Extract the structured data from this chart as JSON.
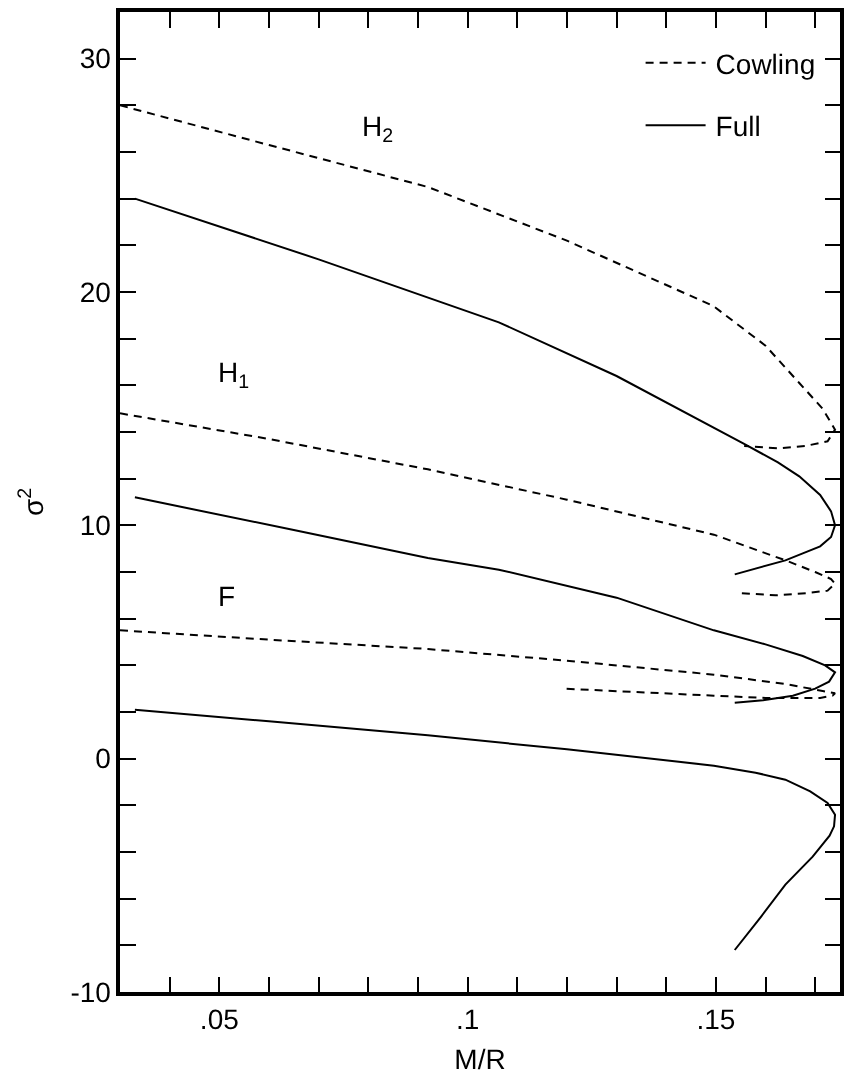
{
  "chart_data": {
    "type": "line",
    "xlabel": "M/R",
    "ylabel": "σ$^{2}$",
    "xlim": [
      0.03,
      0.175
    ],
    "ylim": [
      -10,
      32
    ],
    "xticks": [
      {
        "value": 0.04,
        "label": null
      },
      {
        "value": 0.05,
        "label": ".05"
      },
      {
        "value": 0.06,
        "label": null
      },
      {
        "value": 0.07,
        "label": null
      },
      {
        "value": 0.08,
        "label": null
      },
      {
        "value": 0.09,
        "label": null
      },
      {
        "value": 0.1,
        "label": ".1"
      },
      {
        "value": 0.11,
        "label": null
      },
      {
        "value": 0.12,
        "label": null
      },
      {
        "value": 0.13,
        "label": null
      },
      {
        "value": 0.14,
        "label": null
      },
      {
        "value": 0.15,
        "label": ".15"
      },
      {
        "value": 0.16,
        "label": null
      },
      {
        "value": 0.17,
        "label": null
      }
    ],
    "yticks": [
      -10,
      {
        "value": -8,
        "label": null
      },
      {
        "value": -6,
        "label": null
      },
      {
        "value": -4,
        "label": null
      },
      {
        "value": -2,
        "label": null
      },
      0,
      {
        "value": 2,
        "label": null
      },
      {
        "value": 4,
        "label": null
      },
      {
        "value": 6,
        "label": null
      },
      {
        "value": 8,
        "label": null
      },
      10,
      {
        "value": 12,
        "label": null
      },
      {
        "value": 14,
        "label": null
      },
      {
        "value": 16,
        "label": null
      },
      {
        "value": 18,
        "label": null
      },
      20,
      {
        "value": 22,
        "label": null
      },
      {
        "value": 24,
        "label": null
      },
      {
        "value": 26,
        "label": null
      },
      {
        "value": 28,
        "label": null
      },
      30
    ],
    "grid": false,
    "legend": "top right",
    "marker": "none",
    "series": [
      {
        "name": "Cowling",
        "color": "#000000",
        "line_style": "dashed",
        "x": [
          0.03,
          0.06,
          0.092,
          0.12,
          0.1495,
          0.16,
          0.1668,
          0.1715,
          0.174,
          0.1725,
          0.168,
          0.1625,
          0.1557
        ],
        "values": [
          28.0,
          26.3,
          24.5,
          22.2,
          19.4,
          17.7,
          16.1,
          15.0,
          14.1,
          13.6,
          13.4,
          13.3,
          13.4
        ]
      },
      {
        "name": "Full",
        "color": "#000000",
        "line_style": "solid",
        "x": [
          0.033,
          0.07,
          0.1063,
          0.13,
          0.1556,
          0.1625,
          0.1668,
          0.171,
          0.1732,
          0.174,
          0.1732,
          0.171,
          0.1675,
          0.164,
          0.1538
        ],
        "values": [
          24.0,
          21.4,
          18.7,
          16.4,
          13.5,
          12.7,
          12.1,
          11.3,
          10.6,
          10.0,
          9.5,
          9.1,
          8.8,
          8.5,
          7.9
        ]
      },
      {
        "color": "#000000",
        "line_style": "dashed",
        "x": [
          0.03,
          0.06,
          0.092,
          0.12,
          0.1496,
          0.164,
          0.17,
          0.1732,
          0.174,
          0.1725,
          0.1685,
          0.162,
          0.1545
        ],
        "values": [
          14.8,
          13.7,
          12.4,
          11.1,
          9.6,
          8.5,
          8.0,
          7.7,
          7.5,
          7.2,
          7.1,
          7.0,
          7.1
        ]
      },
      {
        "color": "#000000",
        "line_style": "solid",
        "x": [
          0.033,
          0.065,
          0.092,
          0.1063,
          0.13,
          0.1496,
          0.16,
          0.1675,
          0.172,
          0.174,
          0.1728,
          0.17,
          0.1655,
          0.1595,
          0.1538
        ],
        "values": [
          11.2,
          9.8,
          8.6,
          8.1,
          6.9,
          5.5,
          4.9,
          4.4,
          4.0,
          3.7,
          3.3,
          3.0,
          2.7,
          2.5,
          2.4
        ]
      },
      {
        "color": "#000000",
        "line_style": "dashed",
        "x": [
          0.03,
          0.06,
          0.092,
          0.12,
          0.1496,
          0.164,
          0.1715,
          0.174,
          0.1735,
          0.171,
          0.16,
          0.1496,
          0.1193
        ],
        "values": [
          5.5,
          5.1,
          4.7,
          4.2,
          3.6,
          3.2,
          2.9,
          2.8,
          2.7,
          2.6,
          2.6,
          2.7,
          3.0
        ]
      },
      {
        "color": "#000000",
        "line_style": "solid",
        "x": [
          0.033,
          0.06,
          0.092,
          0.12,
          0.1496,
          0.158,
          0.164,
          0.169,
          0.1725,
          0.174,
          0.1738,
          0.1729,
          0.1695,
          0.164,
          0.159,
          0.1538
        ],
        "values": [
          2.1,
          1.6,
          1.0,
          0.4,
          -0.3,
          -0.6,
          -0.9,
          -1.4,
          -1.9,
          -2.4,
          -2.9,
          -3.3,
          -4.2,
          -5.4,
          -6.8,
          -8.2
        ]
      }
    ],
    "annotations": [
      "H$_{2}$",
      "H$_{1}$",
      "F"
    ]
  }
}
